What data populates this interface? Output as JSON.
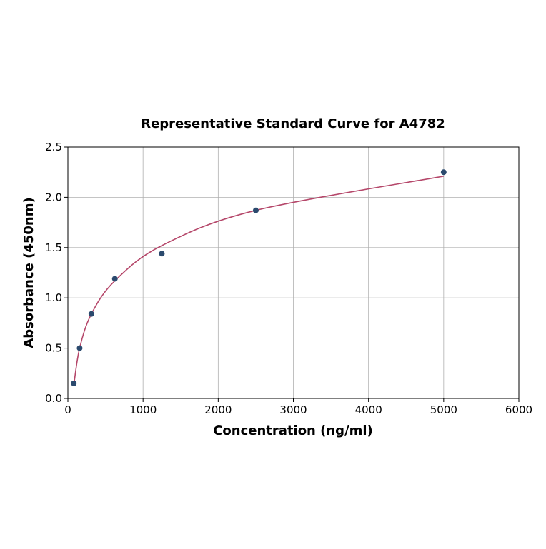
{
  "chart_data": {
    "type": "scatter",
    "title": "Representative Standard Curve for A4782",
    "xlabel": "Concentration (ng/ml)",
    "ylabel": "Absorbance (450nm)",
    "xlim": [
      0,
      6000
    ],
    "ylim": [
      0,
      2.5
    ],
    "xticks": [
      "0",
      "1000",
      "2000",
      "3000",
      "4000",
      "5000",
      "6000"
    ],
    "yticks": [
      "0.0",
      "0.5",
      "1.0",
      "1.5",
      "2.0",
      "2.5"
    ],
    "grid": true,
    "points": {
      "x": [
        78.125,
        156.25,
        312.5,
        625,
        1250,
        2500,
        5000
      ],
      "y": [
        0.15,
        0.5,
        0.84,
        1.19,
        1.44,
        1.87,
        2.25
      ]
    },
    "fit_curve": {
      "x": [
        78.125,
        156.25,
        312.5,
        625,
        1250,
        2500,
        5000
      ],
      "y": [
        0.13,
        0.5,
        0.84,
        1.17,
        1.52,
        1.87,
        2.21
      ]
    },
    "colors": {
      "points": "#2b4a6e",
      "curve": "#b5476a",
      "grid": "#b0b0b0"
    }
  }
}
